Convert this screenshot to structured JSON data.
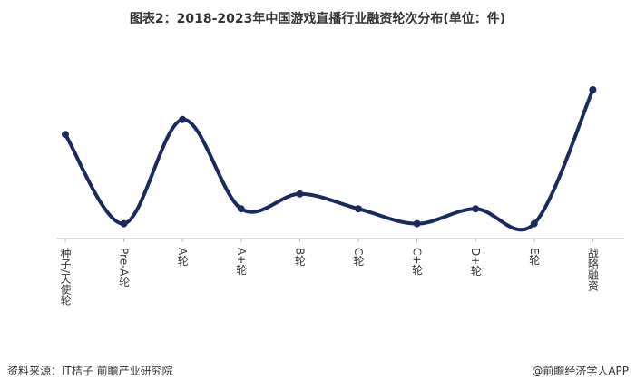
{
  "chart_data": {
    "type": "line",
    "title": "图表2：2018-2023年中国游戏直播行业融资轮次分布(单位：件)",
    "categories": [
      "种子/天使轮",
      "Pre-A轮",
      "A轮",
      "A+轮",
      "B轮",
      "C轮",
      "C+轮",
      "D+轮",
      "E轮",
      "战略融资"
    ],
    "values": [
      7,
      1,
      8,
      2,
      3,
      2,
      1,
      2,
      1,
      10
    ],
    "color": "#1b2a5e",
    "ylim": [
      0,
      10
    ],
    "smooth": true,
    "source": "资料来源：IT桔子 前瞻产业研究院",
    "credit": "@前瞻经济学人APP"
  }
}
